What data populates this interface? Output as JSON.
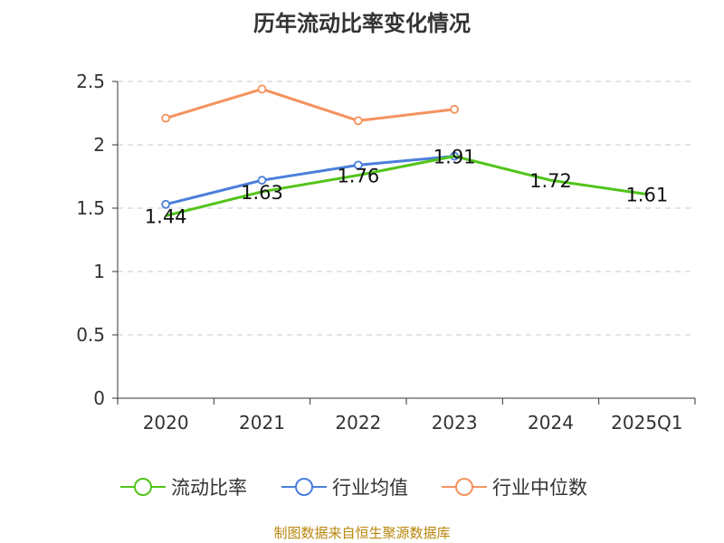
{
  "chart_data": {
    "type": "line",
    "title": "历年流动比率变化情况",
    "categories": [
      "2020",
      "2021",
      "2022",
      "2023",
      "2024",
      "2025Q1"
    ],
    "ylim": [
      0,
      2.5
    ],
    "yticks": [
      "0",
      "0.5",
      "1",
      "1.5",
      "2",
      "2.5"
    ],
    "ytick_values": [
      0,
      0.5,
      1,
      1.5,
      2,
      2.5
    ],
    "grid": true,
    "legend_position": "bottom",
    "series": [
      {
        "name": "流动比率",
        "values": [
          1.44,
          1.63,
          1.76,
          1.91,
          1.72,
          1.61
        ],
        "labels": [
          "1.44",
          "1.63",
          "1.76",
          "1.91",
          "1.72",
          "1.61"
        ],
        "color": "#52c41a"
      },
      {
        "name": "行业均值",
        "values": [
          1.53,
          1.72,
          1.84,
          1.91,
          null,
          null
        ],
        "color": "#4a7fdb"
      },
      {
        "name": "行业中位数",
        "values": [
          2.21,
          2.44,
          2.19,
          2.28,
          null,
          null
        ],
        "color": "#f5925e"
      }
    ]
  },
  "source_text": "制图数据来自恒生聚源数据库"
}
